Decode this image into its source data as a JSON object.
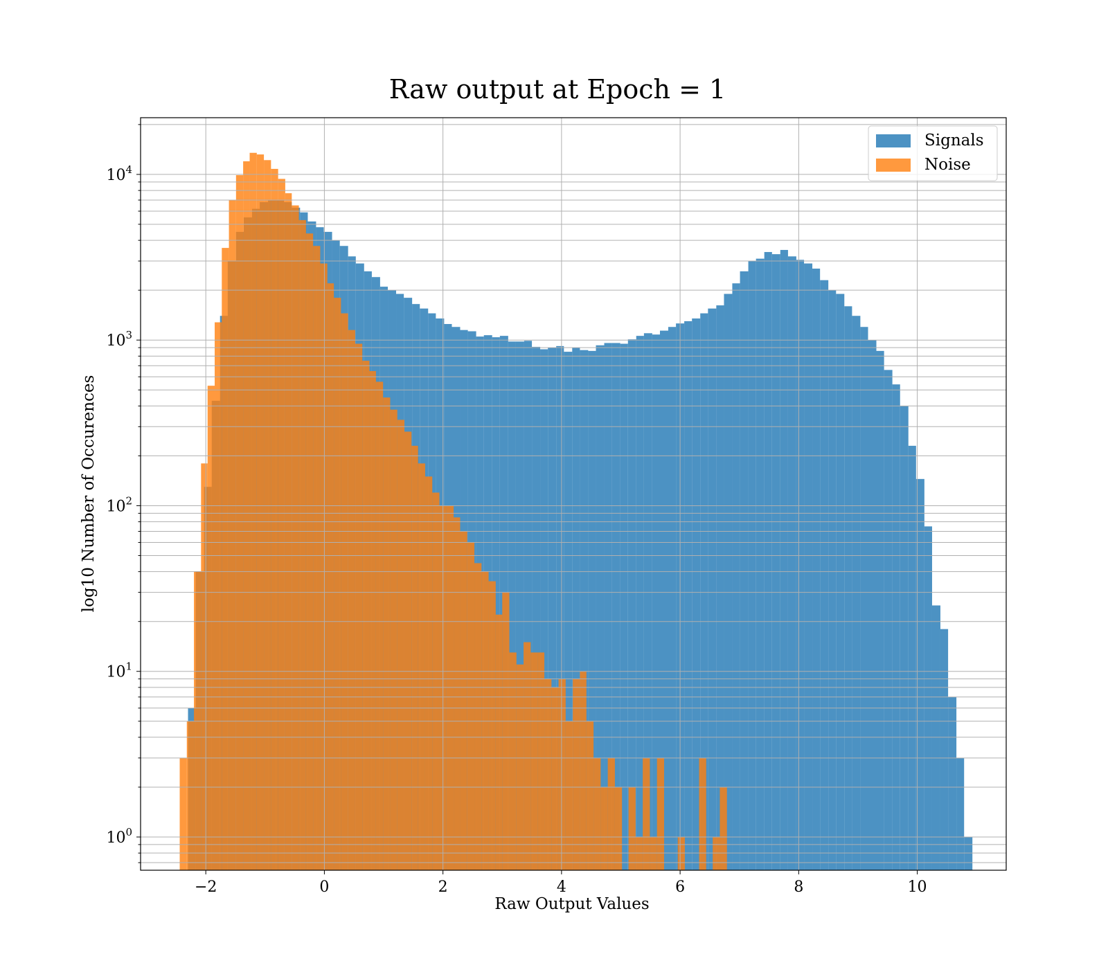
{
  "chart_data": {
    "type": "bar",
    "title": "Raw output at Epoch = 1",
    "xlabel": "Raw Output Values",
    "ylabel": "log10 Number of Occurences",
    "xlim": [
      -3.1,
      11.5
    ],
    "ylim": [
      0.63,
      22000
    ],
    "yscale": "log",
    "grid": true,
    "legend_position": "top-right",
    "x_ticks": [
      {
        "value": -2,
        "label": "−2"
      },
      {
        "value": 0,
        "label": "0"
      },
      {
        "value": 2,
        "label": "2"
      },
      {
        "value": 4,
        "label": "4"
      },
      {
        "value": 6,
        "label": "6"
      },
      {
        "value": 8,
        "label": "8"
      },
      {
        "value": 10,
        "label": "10"
      }
    ],
    "y_ticks": [
      {
        "value": 1,
        "base": "10",
        "exp": "0"
      },
      {
        "value": 10,
        "base": "10",
        "exp": "1"
      },
      {
        "value": 100,
        "base": "10",
        "exp": "2"
      },
      {
        "value": 1000,
        "base": "10",
        "exp": "3"
      },
      {
        "value": 10000,
        "base": "10",
        "exp": "4"
      }
    ],
    "series": [
      {
        "name": "Signals",
        "color": "#1f77b4",
        "opacity": 0.8,
        "bins": [
          [
            -2.3,
            -2.17,
            6
          ],
          [
            -2.17,
            -2.03,
            40
          ],
          [
            -2.03,
            -1.9,
            130
          ],
          [
            -1.9,
            -1.76,
            430
          ],
          [
            -1.76,
            -1.63,
            1400
          ],
          [
            -1.63,
            -1.49,
            3000
          ],
          [
            -1.49,
            -1.36,
            4500
          ],
          [
            -1.36,
            -1.22,
            5500
          ],
          [
            -1.22,
            -1.09,
            6200
          ],
          [
            -1.09,
            -0.95,
            6800
          ],
          [
            -0.95,
            -0.82,
            7000
          ],
          [
            -0.82,
            -0.68,
            7000
          ],
          [
            -0.68,
            -0.55,
            6800
          ],
          [
            -0.55,
            -0.41,
            6300
          ],
          [
            -0.41,
            -0.28,
            5900
          ],
          [
            -0.28,
            -0.14,
            5200
          ],
          [
            -0.14,
            -0.01,
            4800
          ],
          [
            -0.01,
            0.13,
            4500
          ],
          [
            0.13,
            0.26,
            4000
          ],
          [
            0.26,
            0.4,
            3700
          ],
          [
            0.4,
            0.53,
            3200
          ],
          [
            0.53,
            0.67,
            2900
          ],
          [
            0.67,
            0.8,
            2600
          ],
          [
            0.8,
            0.94,
            2400
          ],
          [
            0.94,
            1.07,
            2100
          ],
          [
            1.07,
            1.21,
            2000
          ],
          [
            1.21,
            1.34,
            1900
          ],
          [
            1.34,
            1.48,
            1800
          ],
          [
            1.48,
            1.61,
            1650
          ],
          [
            1.61,
            1.75,
            1550
          ],
          [
            1.75,
            1.88,
            1450
          ],
          [
            1.88,
            2.02,
            1350
          ],
          [
            2.02,
            2.15,
            1250
          ],
          [
            2.15,
            2.29,
            1200
          ],
          [
            2.29,
            2.42,
            1150
          ],
          [
            2.42,
            2.56,
            1130
          ],
          [
            2.56,
            2.69,
            1050
          ],
          [
            2.69,
            2.83,
            1070
          ],
          [
            2.83,
            2.96,
            1040
          ],
          [
            2.96,
            3.1,
            1060
          ],
          [
            3.1,
            3.23,
            980
          ],
          [
            3.23,
            3.37,
            980
          ],
          [
            3.37,
            3.5,
            990
          ],
          [
            3.5,
            3.64,
            910
          ],
          [
            3.64,
            3.77,
            880
          ],
          [
            3.77,
            3.91,
            900
          ],
          [
            3.91,
            4.04,
            920
          ],
          [
            4.04,
            4.18,
            850
          ],
          [
            4.18,
            4.31,
            900
          ],
          [
            4.31,
            4.45,
            870
          ],
          [
            4.45,
            4.58,
            860
          ],
          [
            4.58,
            4.72,
            930
          ],
          [
            4.72,
            4.85,
            960
          ],
          [
            4.85,
            4.99,
            960
          ],
          [
            4.99,
            5.12,
            950
          ],
          [
            5.12,
            5.26,
            1010
          ],
          [
            5.26,
            5.39,
            1060
          ],
          [
            5.39,
            5.53,
            1100
          ],
          [
            5.53,
            5.66,
            1080
          ],
          [
            5.66,
            5.8,
            1140
          ],
          [
            5.8,
            5.93,
            1200
          ],
          [
            5.93,
            6.07,
            1260
          ],
          [
            6.07,
            6.2,
            1300
          ],
          [
            6.2,
            6.34,
            1350
          ],
          [
            6.34,
            6.47,
            1450
          ],
          [
            6.47,
            6.61,
            1550
          ],
          [
            6.61,
            6.74,
            1620
          ],
          [
            6.74,
            6.88,
            1900
          ],
          [
            6.88,
            7.01,
            2200
          ],
          [
            7.01,
            7.15,
            2600
          ],
          [
            7.15,
            7.28,
            3000
          ],
          [
            7.28,
            7.42,
            3100
          ],
          [
            7.42,
            7.55,
            3400
          ],
          [
            7.55,
            7.69,
            3300
          ],
          [
            7.69,
            7.82,
            3500
          ],
          [
            7.82,
            7.96,
            3200
          ],
          [
            7.96,
            8.09,
            3050
          ],
          [
            8.09,
            8.23,
            2900
          ],
          [
            8.23,
            8.36,
            2700
          ],
          [
            8.36,
            8.5,
            2300
          ],
          [
            8.5,
            8.63,
            2000
          ],
          [
            8.63,
            8.77,
            1900
          ],
          [
            8.77,
            8.9,
            1600
          ],
          [
            8.9,
            9.04,
            1400
          ],
          [
            9.04,
            9.17,
            1200
          ],
          [
            9.17,
            9.31,
            1000
          ],
          [
            9.31,
            9.44,
            860
          ],
          [
            9.44,
            9.58,
            660
          ],
          [
            9.58,
            9.71,
            540
          ],
          [
            9.71,
            9.85,
            400
          ],
          [
            9.85,
            9.98,
            230
          ],
          [
            9.98,
            10.12,
            145
          ],
          [
            10.12,
            10.25,
            75
          ],
          [
            10.25,
            10.39,
            25
          ],
          [
            10.39,
            10.52,
            18
          ],
          [
            10.52,
            10.66,
            7
          ],
          [
            10.66,
            10.79,
            3
          ],
          [
            10.79,
            10.93,
            1
          ]
        ]
      },
      {
        "name": "Noise",
        "color": "#ff7f0e",
        "opacity": 0.8,
        "bins": [
          [
            -2.44,
            -2.32,
            3
          ],
          [
            -2.32,
            -2.2,
            5
          ],
          [
            -2.2,
            -2.08,
            40
          ],
          [
            -2.08,
            -1.97,
            180
          ],
          [
            -1.97,
            -1.85,
            530
          ],
          [
            -1.85,
            -1.73,
            1280
          ],
          [
            -1.73,
            -1.61,
            3600
          ],
          [
            -1.61,
            -1.49,
            7000
          ],
          [
            -1.49,
            -1.37,
            9900
          ],
          [
            -1.37,
            -1.26,
            12000
          ],
          [
            -1.26,
            -1.14,
            13500
          ],
          [
            -1.14,
            -1.02,
            13200
          ],
          [
            -1.02,
            -0.9,
            12200
          ],
          [
            -0.9,
            -0.78,
            10800
          ],
          [
            -0.78,
            -0.66,
            9400
          ],
          [
            -0.66,
            -0.55,
            7700
          ],
          [
            -0.55,
            -0.43,
            6500
          ],
          [
            -0.43,
            -0.31,
            5300
          ],
          [
            -0.31,
            -0.19,
            4400
          ],
          [
            -0.19,
            -0.07,
            3700
          ],
          [
            -0.07,
            0.05,
            2900
          ],
          [
            0.05,
            0.16,
            2200
          ],
          [
            0.16,
            0.28,
            1800
          ],
          [
            0.28,
            0.4,
            1450
          ],
          [
            0.4,
            0.52,
            1150
          ],
          [
            0.52,
            0.64,
            950
          ],
          [
            0.64,
            0.76,
            750
          ],
          [
            0.76,
            0.87,
            650
          ],
          [
            0.87,
            0.99,
            560
          ],
          [
            0.99,
            1.11,
            450
          ],
          [
            1.11,
            1.23,
            380
          ],
          [
            1.23,
            1.35,
            330
          ],
          [
            1.35,
            1.47,
            280
          ],
          [
            1.47,
            1.58,
            230
          ],
          [
            1.58,
            1.7,
            180
          ],
          [
            1.7,
            1.82,
            150
          ],
          [
            1.82,
            1.94,
            120
          ],
          [
            1.94,
            2.06,
            100
          ],
          [
            2.06,
            2.18,
            100
          ],
          [
            2.18,
            2.29,
            85
          ],
          [
            2.29,
            2.41,
            70
          ],
          [
            2.41,
            2.53,
            60
          ],
          [
            2.53,
            2.65,
            45
          ],
          [
            2.65,
            2.77,
            40
          ],
          [
            2.77,
            2.89,
            35
          ],
          [
            2.89,
            3.0,
            22
          ],
          [
            3.0,
            3.12,
            30
          ],
          [
            3.12,
            3.24,
            13
          ],
          [
            3.24,
            3.36,
            11
          ],
          [
            3.36,
            3.48,
            15
          ],
          [
            3.48,
            3.6,
            13
          ],
          [
            3.6,
            3.71,
            13
          ],
          [
            3.71,
            3.83,
            9
          ],
          [
            3.83,
            3.95,
            8
          ],
          [
            3.95,
            4.07,
            9
          ],
          [
            4.07,
            4.19,
            5
          ],
          [
            4.19,
            4.31,
            9
          ],
          [
            4.31,
            4.42,
            10
          ],
          [
            4.42,
            4.54,
            5
          ],
          [
            4.54,
            4.66,
            3
          ],
          [
            4.66,
            4.78,
            2
          ],
          [
            4.78,
            4.9,
            3
          ],
          [
            4.9,
            5.02,
            2
          ],
          [
            5.02,
            5.13,
            0
          ],
          [
            5.13,
            5.25,
            2
          ],
          [
            5.25,
            5.37,
            1
          ],
          [
            5.37,
            5.49,
            3
          ],
          [
            5.49,
            5.61,
            1
          ],
          [
            5.61,
            5.73,
            3
          ],
          [
            5.73,
            5.84,
            0
          ],
          [
            5.84,
            5.96,
            0
          ],
          [
            5.96,
            6.08,
            1
          ],
          [
            6.08,
            6.2,
            0
          ],
          [
            6.2,
            6.32,
            0
          ],
          [
            6.32,
            6.44,
            3
          ],
          [
            6.44,
            6.55,
            0
          ],
          [
            6.55,
            6.67,
            1
          ],
          [
            6.67,
            6.79,
            2
          ]
        ]
      }
    ]
  }
}
